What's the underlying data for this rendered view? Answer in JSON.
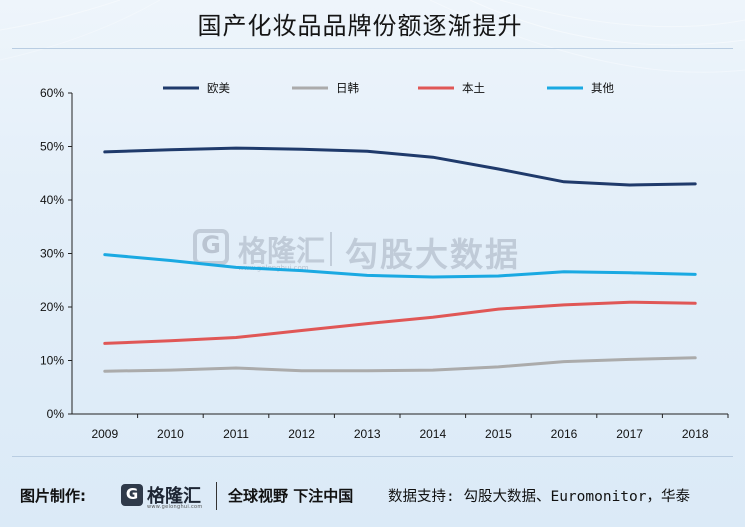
{
  "title": "国产化妆品品牌份额逐渐提升",
  "watermark": {
    "brand": "格隆汇",
    "url": "www.gelonghui.com",
    "text": "勾股大数据"
  },
  "footer": {
    "label": "图片制作:",
    "brand": "格隆汇",
    "brand_url": "www.gelonghui.com",
    "slogan": "全球视野 下注中国",
    "source": "数据支持: 勾股大数据、Euromonitor，华泰"
  },
  "chart_data": {
    "type": "line",
    "title": "",
    "xlabel": "",
    "ylabel": "",
    "x": [
      "2009",
      "2010",
      "2011",
      "2012",
      "2013",
      "2014",
      "2015",
      "2016",
      "2017",
      "2018"
    ],
    "ylim": [
      0,
      60
    ],
    "yticks": [
      "0%",
      "10%",
      "20%",
      "30%",
      "40%",
      "50%",
      "60%"
    ],
    "grid": false,
    "legend_position": "top",
    "series": [
      {
        "name": "欧美",
        "color": "#1f3a6b",
        "values": [
          49,
          49.4,
          49.7,
          49.5,
          49.1,
          48.0,
          45.8,
          43.4,
          42.8,
          43.0
        ]
      },
      {
        "name": "日韩",
        "color": "#ababab",
        "values": [
          8.0,
          8.2,
          8.6,
          8.1,
          8.1,
          8.2,
          8.8,
          9.8,
          10.2,
          10.5
        ]
      },
      {
        "name": "本土",
        "color": "#e05756",
        "values": [
          13.2,
          13.7,
          14.3,
          15.6,
          16.9,
          18.1,
          19.6,
          20.4,
          20.9,
          20.7
        ]
      },
      {
        "name": "其他",
        "color": "#1aa9e2",
        "values": [
          29.8,
          28.7,
          27.4,
          26.8,
          25.9,
          25.6,
          25.8,
          26.6,
          26.4,
          26.1
        ]
      }
    ]
  }
}
